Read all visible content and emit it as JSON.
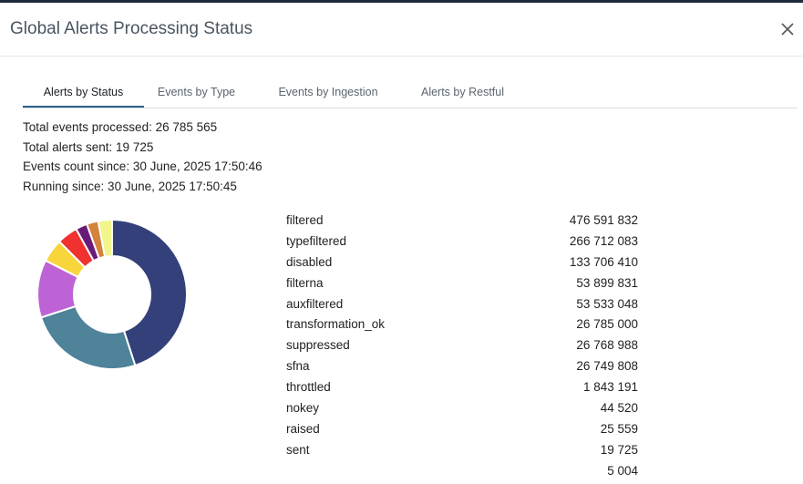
{
  "dialog": {
    "title": "Global Alerts Processing Status",
    "close_icon": "close-icon"
  },
  "tabs": [
    {
      "label": "Alerts by Status",
      "active": true
    },
    {
      "label": "Events by Type",
      "active": false
    },
    {
      "label": "Events by Ingestion",
      "active": false
    },
    {
      "label": "Alerts by Restful",
      "active": false
    }
  ],
  "stats": {
    "total_events": "Total events processed: 26 785 565",
    "total_alerts": "Total alerts sent: 19 725",
    "events_since": "Events count since: 30 June, 2025 17:50:46",
    "running_since": "Running since: 30 June, 2025 17:50:45"
  },
  "status_list": [
    {
      "name": "filtered",
      "value": "476 591 832"
    },
    {
      "name": "typefiltered",
      "value": "266 712 083"
    },
    {
      "name": "disabled",
      "value": "133 706 410"
    },
    {
      "name": "filterna",
      "value": "53 899 831"
    },
    {
      "name": "auxfiltered",
      "value": "53 533 048"
    },
    {
      "name": "transformation_ok",
      "value": "26 785 000"
    },
    {
      "name": "suppressed",
      "value": "26 768 988"
    },
    {
      "name": "sfna",
      "value": "26 749 808"
    },
    {
      "name": "throttled",
      "value": "1 843 191"
    },
    {
      "name": "nokey",
      "value": "44 520"
    },
    {
      "name": "raised",
      "value": "25 559"
    },
    {
      "name": "sent",
      "value": "19 725"
    },
    {
      "name": "",
      "value": "5 004"
    }
  ],
  "chart_data": {
    "type": "pie",
    "donut": true,
    "slices": [
      {
        "value": 45.0,
        "color": "#33407a"
      },
      {
        "value": 25.0,
        "color": "#4e8399"
      },
      {
        "value": 12.5,
        "color": "#bd63d6"
      },
      {
        "value": 5.0,
        "color": "#f7d53b"
      },
      {
        "value": 4.5,
        "color": "#f0312f"
      },
      {
        "value": 2.5,
        "color": "#6a1b7a"
      },
      {
        "value": 2.5,
        "color": "#d4833a"
      },
      {
        "value": 3.0,
        "color": "#f1f58a"
      }
    ]
  }
}
